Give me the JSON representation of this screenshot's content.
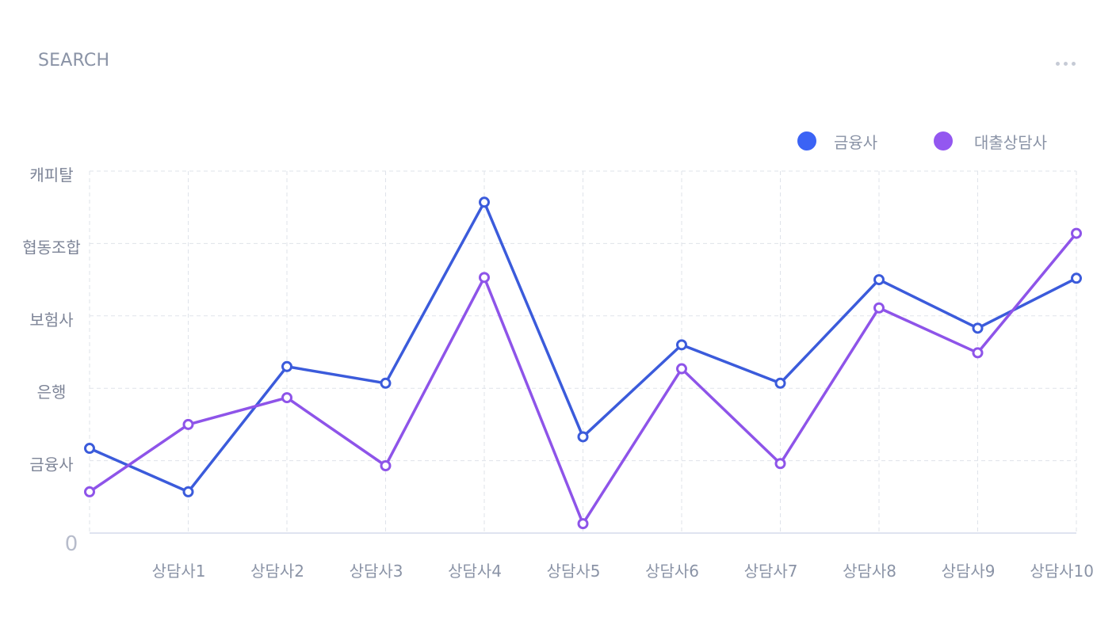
{
  "header": {
    "title": "SEARCH",
    "more_icon": "more-horizontal-icon"
  },
  "chart_data": {
    "type": "line",
    "title": "",
    "categories": [
      "",
      "상담사1",
      "상담사2",
      "상담사3",
      "상담사4",
      "상담사5",
      "상담사6",
      "상담사7",
      "상담사8",
      "상담사9",
      "상담사10"
    ],
    "y_tick_labels": [
      "0",
      "금융사",
      "은행",
      "보험사",
      "협동조합",
      "캐피탈"
    ],
    "ylim": [
      0,
      5
    ],
    "grid": true,
    "legend_position": "top-right",
    "series": [
      {
        "name": "금융사",
        "color": "#3b5bdb",
        "legend_color": "#3b63f5",
        "values": [
          1.17,
          0.57,
          2.3,
          2.07,
          4.57,
          1.33,
          2.6,
          2.07,
          3.5,
          2.83,
          3.52
        ]
      },
      {
        "name": "대출상담사",
        "color": "#8e54e9",
        "legend_color": "#9357f0",
        "values": [
          0.57,
          1.5,
          1.87,
          0.93,
          3.53,
          0.13,
          2.27,
          0.96,
          3.11,
          2.49,
          4.14
        ]
      }
    ]
  }
}
